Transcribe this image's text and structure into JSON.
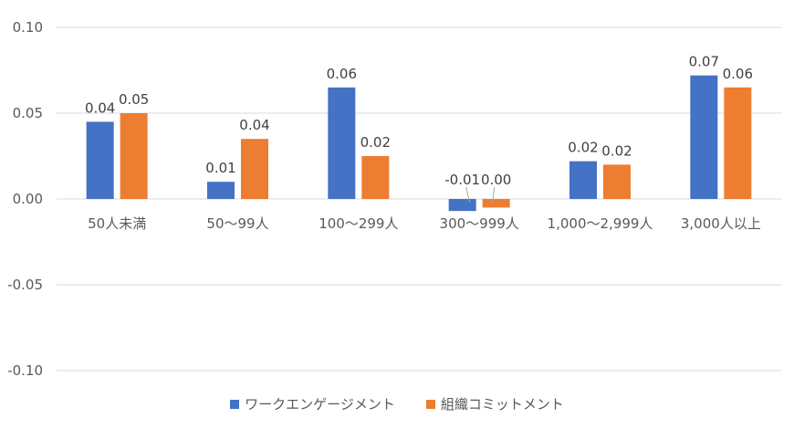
{
  "chart_data": {
    "type": "bar",
    "categories": [
      "50人未満",
      "50〜99人",
      "100〜299人",
      "300〜999人",
      "1,000〜2,999人",
      "3,000人以上"
    ],
    "series": [
      {
        "name": "ワークエンゲージメント",
        "color": "#4472C4",
        "values": [
          0.045,
          0.01,
          0.065,
          -0.007,
          0.022,
          0.072
        ],
        "labels": [
          "0.04",
          "0.01",
          "0.06",
          "-0.01",
          "0.02",
          "0.07"
        ]
      },
      {
        "name": "組織コミットメント",
        "color": "#ED7D31",
        "values": [
          0.05,
          0.035,
          0.025,
          -0.005,
          0.02,
          0.065
        ],
        "labels": [
          "0.05",
          "0.04",
          "0.02",
          "0.00",
          "0.02",
          "0.06"
        ]
      }
    ],
    "yticks": [
      "0.10",
      "0.05",
      "0.00",
      "-0.05",
      "-0.10"
    ],
    "ylim": [
      -0.1,
      0.1
    ],
    "grid": true,
    "legend_position": "bottom"
  }
}
